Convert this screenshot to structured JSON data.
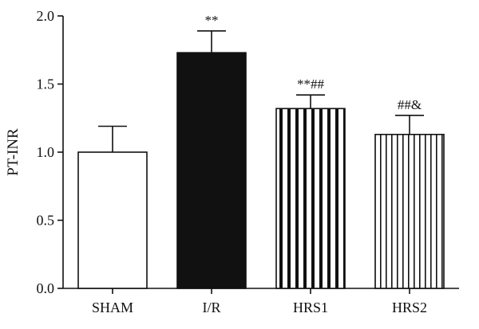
{
  "chart_data": {
    "type": "bar",
    "categories": [
      "SHAM",
      "I/R",
      "HRS1",
      "HRS2"
    ],
    "values": [
      1.0,
      1.73,
      1.32,
      1.13
    ],
    "errors": [
      0.19,
      0.16,
      0.1,
      0.14
    ],
    "annotations": [
      "",
      "**",
      "**##",
      "##&"
    ],
    "fills": [
      "white",
      "black",
      "vertical-stripes-wide",
      "vertical-stripes-narrow"
    ],
    "ylabel": "PT-INR",
    "xlabel": "",
    "title": "",
    "ylim": [
      0,
      2.0
    ],
    "yticks": [
      0.0,
      0.5,
      1.0,
      1.5,
      2.0
    ],
    "ytick_labels": [
      "0.0",
      "0.5",
      "1.0",
      "1.5",
      "2.0"
    ],
    "grid": false,
    "color": "#111111"
  }
}
